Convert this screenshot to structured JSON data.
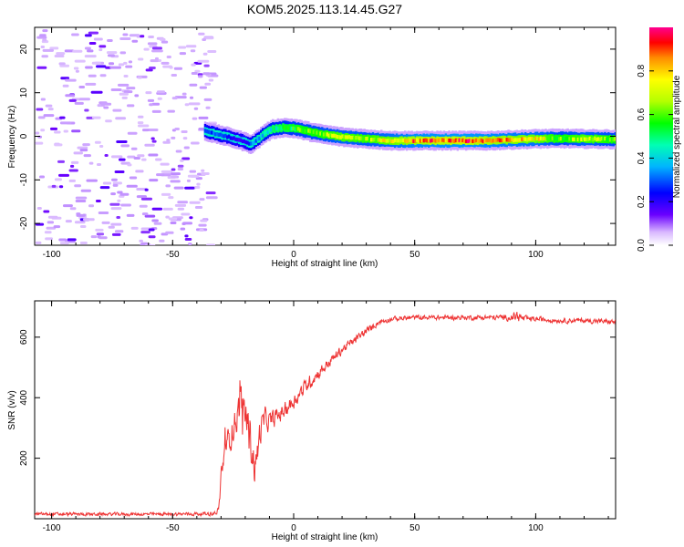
{
  "figure_title": "KOM5.2025.113.14.45.G27",
  "colors": {
    "snr_line": "#ee3333",
    "axis": "#000000"
  },
  "colorbar": {
    "label": "Normalized spectral amplitude",
    "ticks": [
      "0.0",
      "0.2",
      "0.4",
      "0.6",
      "0.8"
    ],
    "tick_values": [
      0.0,
      0.2,
      0.4,
      0.6,
      0.8
    ],
    "range": [
      0,
      1
    ]
  },
  "chart_data": [
    {
      "type": "heatmap",
      "title": "",
      "xlabel": "Height of straight line (km)",
      "ylabel": "Frequency (Hz)",
      "xlim": [
        -107,
        133
      ],
      "ylim": [
        -25,
        25
      ],
      "xticks": [
        "-100",
        "-50",
        "0",
        "50",
        "100"
      ],
      "xtick_values": [
        -100,
        -50,
        0,
        50,
        100
      ],
      "yticks": [
        "-20",
        "-10",
        "0",
        "10",
        "20"
      ],
      "ytick_values": [
        -20,
        -10,
        0,
        10,
        20
      ],
      "noise_region_x": [
        -107,
        -35
      ],
      "ridge": {
        "x": [
          -37,
          -33,
          -29,
          -25,
          -21,
          -18,
          -15,
          -12,
          -9,
          -5,
          0,
          5,
          10,
          20,
          30,
          40,
          50,
          60,
          70,
          80,
          90,
          100,
          110,
          120,
          133
        ],
        "frequency": [
          1.2,
          0.6,
          0.1,
          -0.5,
          -1.2,
          -1.8,
          -0.6,
          0.8,
          1.6,
          2.0,
          1.8,
          1.2,
          0.6,
          -0.2,
          -0.6,
          -1.0,
          -1.0,
          -1.0,
          -1.0,
          -1.0,
          -0.8,
          -0.6,
          -0.5,
          -0.6,
          -0.7
        ],
        "amplitude": [
          0.25,
          0.3,
          0.25,
          0.2,
          0.2,
          0.3,
          0.35,
          0.4,
          0.45,
          0.5,
          0.55,
          0.6,
          0.62,
          0.7,
          0.65,
          0.75,
          0.85,
          0.88,
          0.9,
          0.85,
          0.8,
          0.75,
          0.6,
          0.7,
          0.6
        ]
      }
    },
    {
      "type": "line",
      "title": "",
      "xlabel": "Height of straight line (km)",
      "ylabel": "SNR (v/v)",
      "xlim": [
        -107,
        133
      ],
      "ylim": [
        0,
        720
      ],
      "xticks": [
        "-100",
        "-50",
        "0",
        "50",
        "100"
      ],
      "xtick_values": [
        -100,
        -50,
        0,
        50,
        100
      ],
      "yticks": [
        "200",
        "400",
        "600"
      ],
      "ytick_values": [
        200,
        400,
        600
      ],
      "series": [
        {
          "values_envelope": {
            "x": [
              -107,
              -50,
              -33,
              -31,
              -30,
              -28,
              -25,
              -22,
              -20,
              -18,
              -16,
              -14,
              -12,
              -10,
              -5,
              0,
              5,
              10,
              15,
              20,
              25,
              30,
              35,
              40,
              50,
              60,
              70,
              80,
              90,
              92,
              95,
              100,
              110,
              120,
              133
            ],
            "mean": [
              15,
              15,
              17,
              30,
              160,
              240,
              300,
              380,
              350,
              260,
              160,
              290,
              330,
              320,
              350,
              390,
              440,
              480,
              520,
              560,
              590,
              620,
              650,
              660,
              665,
              665,
              665,
              665,
              665,
              670,
              660,
              660,
              655,
              655,
              650
            ],
            "noise": [
              8,
              8,
              10,
              15,
              50,
              60,
              70,
              80,
              90,
              110,
              90,
              70,
              60,
              45,
              40,
              35,
              35,
              30,
              25,
              22,
              20,
              18,
              15,
              12,
              12,
              12,
              12,
              12,
              15,
              30,
              15,
              12,
              12,
              12,
              12
            ]
          }
        }
      ]
    }
  ]
}
